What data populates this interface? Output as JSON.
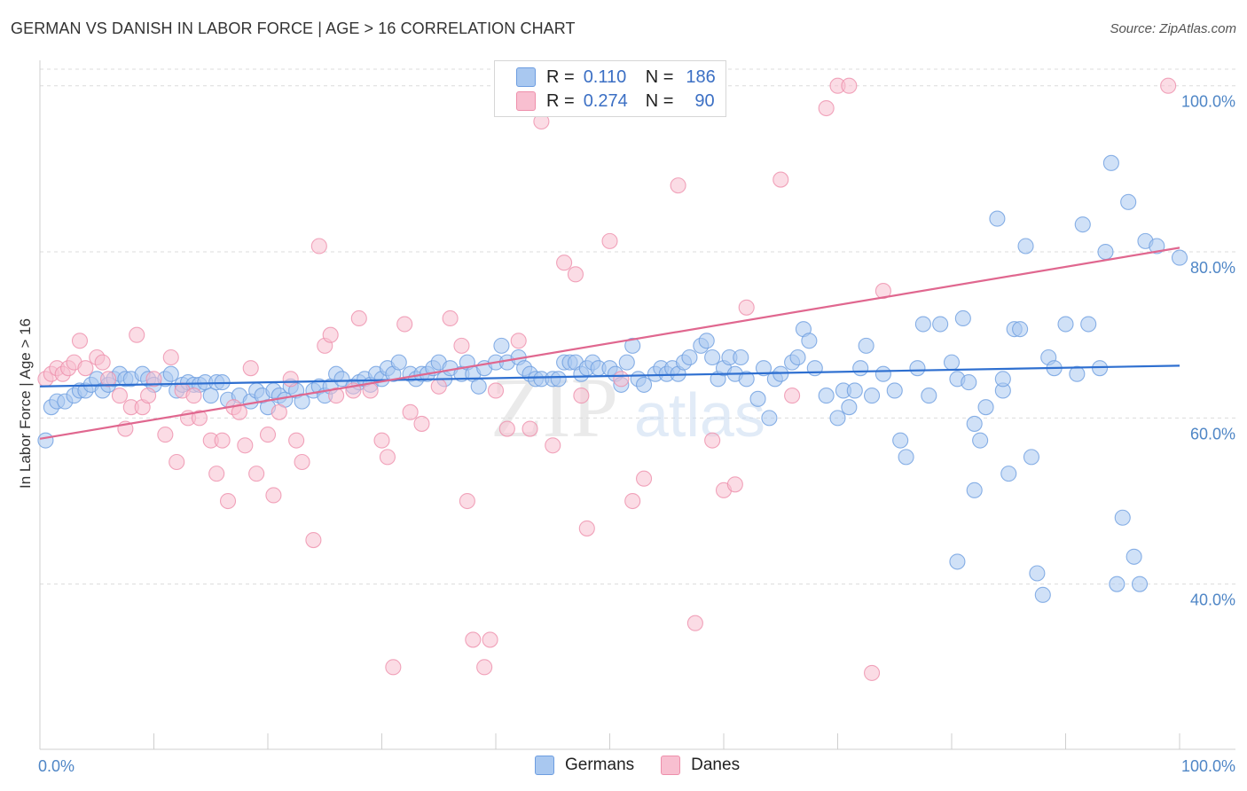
{
  "title": "GERMAN VS DANISH IN LABOR FORCE | AGE > 16 CORRELATION CHART",
  "source": "Source: ZipAtlas.com",
  "watermark": {
    "zip": "ZIP",
    "atlas": "atlas"
  },
  "legend": {
    "series": [
      {
        "name": "Germans",
        "r_label": "R =",
        "r_value": "0.110",
        "n_label": "N =",
        "n_value": "186",
        "fill": "#a9c8f0",
        "stroke": "#6d9de0"
      },
      {
        "name": "Danes",
        "r_label": "R =",
        "r_value": "0.274",
        "n_label": "N =",
        "n_value": "90",
        "fill": "#f8bfd0",
        "stroke": "#ee8fab"
      }
    ]
  },
  "chart_data": {
    "type": "scatter",
    "xlabel": "",
    "ylabel": "In Labor Force | Age > 16",
    "xlim": [
      0,
      100
    ],
    "ylim": [
      20,
      102
    ],
    "x_tick_labels": [
      "0.0%",
      "100.0%"
    ],
    "y_ticks": [
      40,
      60,
      80,
      100
    ],
    "y_tick_labels": [
      "40.0%",
      "60.0%",
      "80.0%",
      "100.0%"
    ],
    "grid": "horizontal dashed",
    "series": [
      {
        "name": "Germans",
        "color": "#6d9de0",
        "trend": {
          "x": [
            0,
            100
          ],
          "y": [
            63.8,
            66.3
          ]
        },
        "points": [
          [
            0.5,
            57.3
          ],
          [
            1,
            61.3
          ],
          [
            1.5,
            62
          ],
          [
            2.2,
            62
          ],
          [
            3,
            62.7
          ],
          [
            3.5,
            63.3
          ],
          [
            4,
            63.3
          ],
          [
            4.5,
            64
          ],
          [
            5,
            64.7
          ],
          [
            5.5,
            63.3
          ],
          [
            6,
            64
          ],
          [
            6.5,
            64.7
          ],
          [
            7,
            65.3
          ],
          [
            7.5,
            64.7
          ],
          [
            8,
            64.7
          ],
          [
            9,
            65.3
          ],
          [
            9.5,
            64.7
          ],
          [
            10,
            64
          ],
          [
            11,
            64.7
          ],
          [
            11.5,
            65.3
          ],
          [
            12,
            63.3
          ],
          [
            12.5,
            64
          ],
          [
            13,
            64.3
          ],
          [
            13.5,
            64
          ],
          [
            14,
            64
          ],
          [
            14.5,
            64.3
          ],
          [
            15,
            62.7
          ],
          [
            15.5,
            64.3
          ],
          [
            16,
            64.3
          ],
          [
            16.5,
            62.2
          ],
          [
            17.5,
            62.7
          ],
          [
            18.5,
            62
          ],
          [
            19,
            63.3
          ],
          [
            19.5,
            62.7
          ],
          [
            20,
            61.3
          ],
          [
            20.5,
            63.3
          ],
          [
            21,
            62.7
          ],
          [
            21.5,
            62.2
          ],
          [
            22,
            63.8
          ],
          [
            22.5,
            63.3
          ],
          [
            23,
            62
          ],
          [
            24,
            63.3
          ],
          [
            24.5,
            63.8
          ],
          [
            25,
            62.7
          ],
          [
            25.5,
            63.8
          ],
          [
            26,
            65.3
          ],
          [
            26.5,
            64.7
          ],
          [
            27.5,
            63.8
          ],
          [
            28,
            64.3
          ],
          [
            28.5,
            64.7
          ],
          [
            29,
            64
          ],
          [
            29.5,
            65.3
          ],
          [
            30,
            64.7
          ],
          [
            30.5,
            66
          ],
          [
            31,
            65.3
          ],
          [
            31.5,
            66.7
          ],
          [
            32.5,
            65.3
          ],
          [
            33,
            64.7
          ],
          [
            33.5,
            65.3
          ],
          [
            34,
            65.3
          ],
          [
            34.5,
            66
          ],
          [
            35,
            66.7
          ],
          [
            35.5,
            64.7
          ],
          [
            36,
            66
          ],
          [
            37,
            65.3
          ],
          [
            37.5,
            66.7
          ],
          [
            38,
            65.3
          ],
          [
            38.5,
            63.8
          ],
          [
            39,
            66
          ],
          [
            40,
            66.7
          ],
          [
            40.5,
            68.7
          ],
          [
            41,
            66.7
          ],
          [
            42,
            67.3
          ],
          [
            42.5,
            66
          ],
          [
            43,
            65.3
          ],
          [
            43.5,
            64.7
          ],
          [
            44,
            64.7
          ],
          [
            45,
            64.7
          ],
          [
            45.5,
            64.7
          ],
          [
            46,
            66.7
          ],
          [
            46.5,
            66.7
          ],
          [
            47,
            66.7
          ],
          [
            47.5,
            65.3
          ],
          [
            48,
            66
          ],
          [
            48.5,
            66.7
          ],
          [
            49,
            66
          ],
          [
            50,
            66
          ],
          [
            50.5,
            65.3
          ],
          [
            51,
            64
          ],
          [
            51.5,
            66.7
          ],
          [
            52,
            68.7
          ],
          [
            52.5,
            64.7
          ],
          [
            53,
            64
          ],
          [
            54,
            65.3
          ],
          [
            54.5,
            66
          ],
          [
            55,
            65.3
          ],
          [
            55.5,
            66
          ],
          [
            56,
            65.3
          ],
          [
            56.5,
            66.7
          ],
          [
            57,
            67.3
          ],
          [
            58,
            68.7
          ],
          [
            58.5,
            69.3
          ],
          [
            59,
            67.3
          ],
          [
            59.5,
            64.7
          ],
          [
            60,
            66
          ],
          [
            60.5,
            67.3
          ],
          [
            61,
            65.3
          ],
          [
            61.5,
            67.3
          ],
          [
            62,
            64.7
          ],
          [
            63,
            62.3
          ],
          [
            63.5,
            66
          ],
          [
            64,
            60
          ],
          [
            64.5,
            64.7
          ],
          [
            65,
            65.3
          ],
          [
            66,
            66.7
          ],
          [
            66.5,
            67.3
          ],
          [
            67,
            70.7
          ],
          [
            67.5,
            69.3
          ],
          [
            68,
            66
          ],
          [
            69,
            62.7
          ],
          [
            70,
            60
          ],
          [
            70.5,
            63.3
          ],
          [
            71,
            61.3
          ],
          [
            71.5,
            63.3
          ],
          [
            72,
            66
          ],
          [
            72.5,
            68.7
          ],
          [
            73,
            62.7
          ],
          [
            74,
            65.3
          ],
          [
            75,
            63.3
          ],
          [
            75.5,
            57.3
          ],
          [
            76,
            55.3
          ],
          [
            77,
            66
          ],
          [
            77.5,
            71.3
          ],
          [
            78,
            62.7
          ],
          [
            79,
            71.3
          ],
          [
            80,
            66.7
          ],
          [
            80.5,
            64.7
          ],
          [
            81,
            72
          ],
          [
            81.5,
            64.3
          ],
          [
            82,
            59.3
          ],
          [
            82.5,
            57.3
          ],
          [
            83,
            61.3
          ],
          [
            84,
            84
          ],
          [
            84.5,
            63.3
          ],
          [
            85,
            53.3
          ],
          [
            85.5,
            70.7
          ],
          [
            86,
            70.7
          ],
          [
            86.5,
            80.7
          ],
          [
            87,
            55.3
          ],
          [
            87.5,
            41.3
          ],
          [
            88,
            38.7
          ],
          [
            88.5,
            67.3
          ],
          [
            89,
            66
          ],
          [
            90,
            71.3
          ],
          [
            91,
            65.3
          ],
          [
            91.5,
            83.3
          ],
          [
            92,
            71.3
          ],
          [
            93,
            66
          ],
          [
            93.5,
            80
          ],
          [
            94,
            90.7
          ],
          [
            94.5,
            40
          ],
          [
            95,
            48
          ],
          [
            95.5,
            86
          ],
          [
            96,
            43.3
          ],
          [
            96.5,
            40
          ],
          [
            97,
            81.3
          ],
          [
            98,
            80.7
          ],
          [
            100,
            79.3
          ],
          [
            82,
            51.3
          ],
          [
            80.5,
            42.7
          ],
          [
            84.5,
            64.7
          ]
        ]
      },
      {
        "name": "Danes",
        "color": "#ee8fab",
        "trend": {
          "x": [
            0,
            100
          ],
          "y": [
            57.5,
            80.5
          ]
        },
        "points": [
          [
            0.5,
            64.7
          ],
          [
            1,
            65.3
          ],
          [
            1.5,
            66
          ],
          [
            2,
            65.3
          ],
          [
            2.5,
            66
          ],
          [
            3,
            66.7
          ],
          [
            3.5,
            69.3
          ],
          [
            4,
            66
          ],
          [
            5,
            67.3
          ],
          [
            5.5,
            66.7
          ],
          [
            6,
            64.7
          ],
          [
            7,
            62.7
          ],
          [
            7.5,
            58.7
          ],
          [
            8,
            61.3
          ],
          [
            8.5,
            70
          ],
          [
            9,
            61.3
          ],
          [
            9.5,
            62.7
          ],
          [
            10,
            64.7
          ],
          [
            11,
            58
          ],
          [
            11.5,
            67.3
          ],
          [
            12,
            54.7
          ],
          [
            12.5,
            63.3
          ],
          [
            13,
            60
          ],
          [
            13.5,
            62.7
          ],
          [
            14,
            60
          ],
          [
            15,
            57.3
          ],
          [
            15.5,
            53.3
          ],
          [
            16,
            57.3
          ],
          [
            16.5,
            50
          ],
          [
            17,
            61.3
          ],
          [
            17.5,
            60.7
          ],
          [
            18,
            56.7
          ],
          [
            18.5,
            66
          ],
          [
            19,
            53.3
          ],
          [
            20,
            58
          ],
          [
            20.5,
            50.7
          ],
          [
            21,
            60.7
          ],
          [
            22,
            64.7
          ],
          [
            22.5,
            57.3
          ],
          [
            23,
            54.7
          ],
          [
            24,
            45.3
          ],
          [
            24.5,
            80.7
          ],
          [
            25,
            68.7
          ],
          [
            25.5,
            70
          ],
          [
            26,
            62.7
          ],
          [
            27.5,
            63.3
          ],
          [
            28,
            72
          ],
          [
            29,
            63.3
          ],
          [
            30,
            57.3
          ],
          [
            30.5,
            55.3
          ],
          [
            31,
            30
          ],
          [
            32,
            71.3
          ],
          [
            32.5,
            60.7
          ],
          [
            33.5,
            59.3
          ],
          [
            35,
            63.8
          ],
          [
            36,
            72
          ],
          [
            37,
            68.7
          ],
          [
            37.5,
            50
          ],
          [
            38,
            33.3
          ],
          [
            39,
            30
          ],
          [
            39.5,
            33.3
          ],
          [
            40,
            63.3
          ],
          [
            41,
            58.7
          ],
          [
            42,
            69.3
          ],
          [
            43,
            58.7
          ],
          [
            44,
            95.7
          ],
          [
            45,
            56.7
          ],
          [
            46,
            78.7
          ],
          [
            47,
            77.3
          ],
          [
            47.5,
            62.7
          ],
          [
            48,
            46.7
          ],
          [
            50,
            81.3
          ],
          [
            51,
            64.7
          ],
          [
            52,
            50
          ],
          [
            53,
            52.7
          ],
          [
            56,
            88
          ],
          [
            57.5,
            35.3
          ],
          [
            59,
            57.3
          ],
          [
            60,
            51.3
          ],
          [
            61,
            52
          ],
          [
            62,
            73.3
          ],
          [
            65,
            88.7
          ],
          [
            66,
            62.7
          ],
          [
            69,
            97.3
          ],
          [
            70,
            100
          ],
          [
            71,
            100
          ],
          [
            73,
            29.3
          ],
          [
            74,
            75.3
          ],
          [
            99,
            100
          ]
        ]
      }
    ]
  }
}
